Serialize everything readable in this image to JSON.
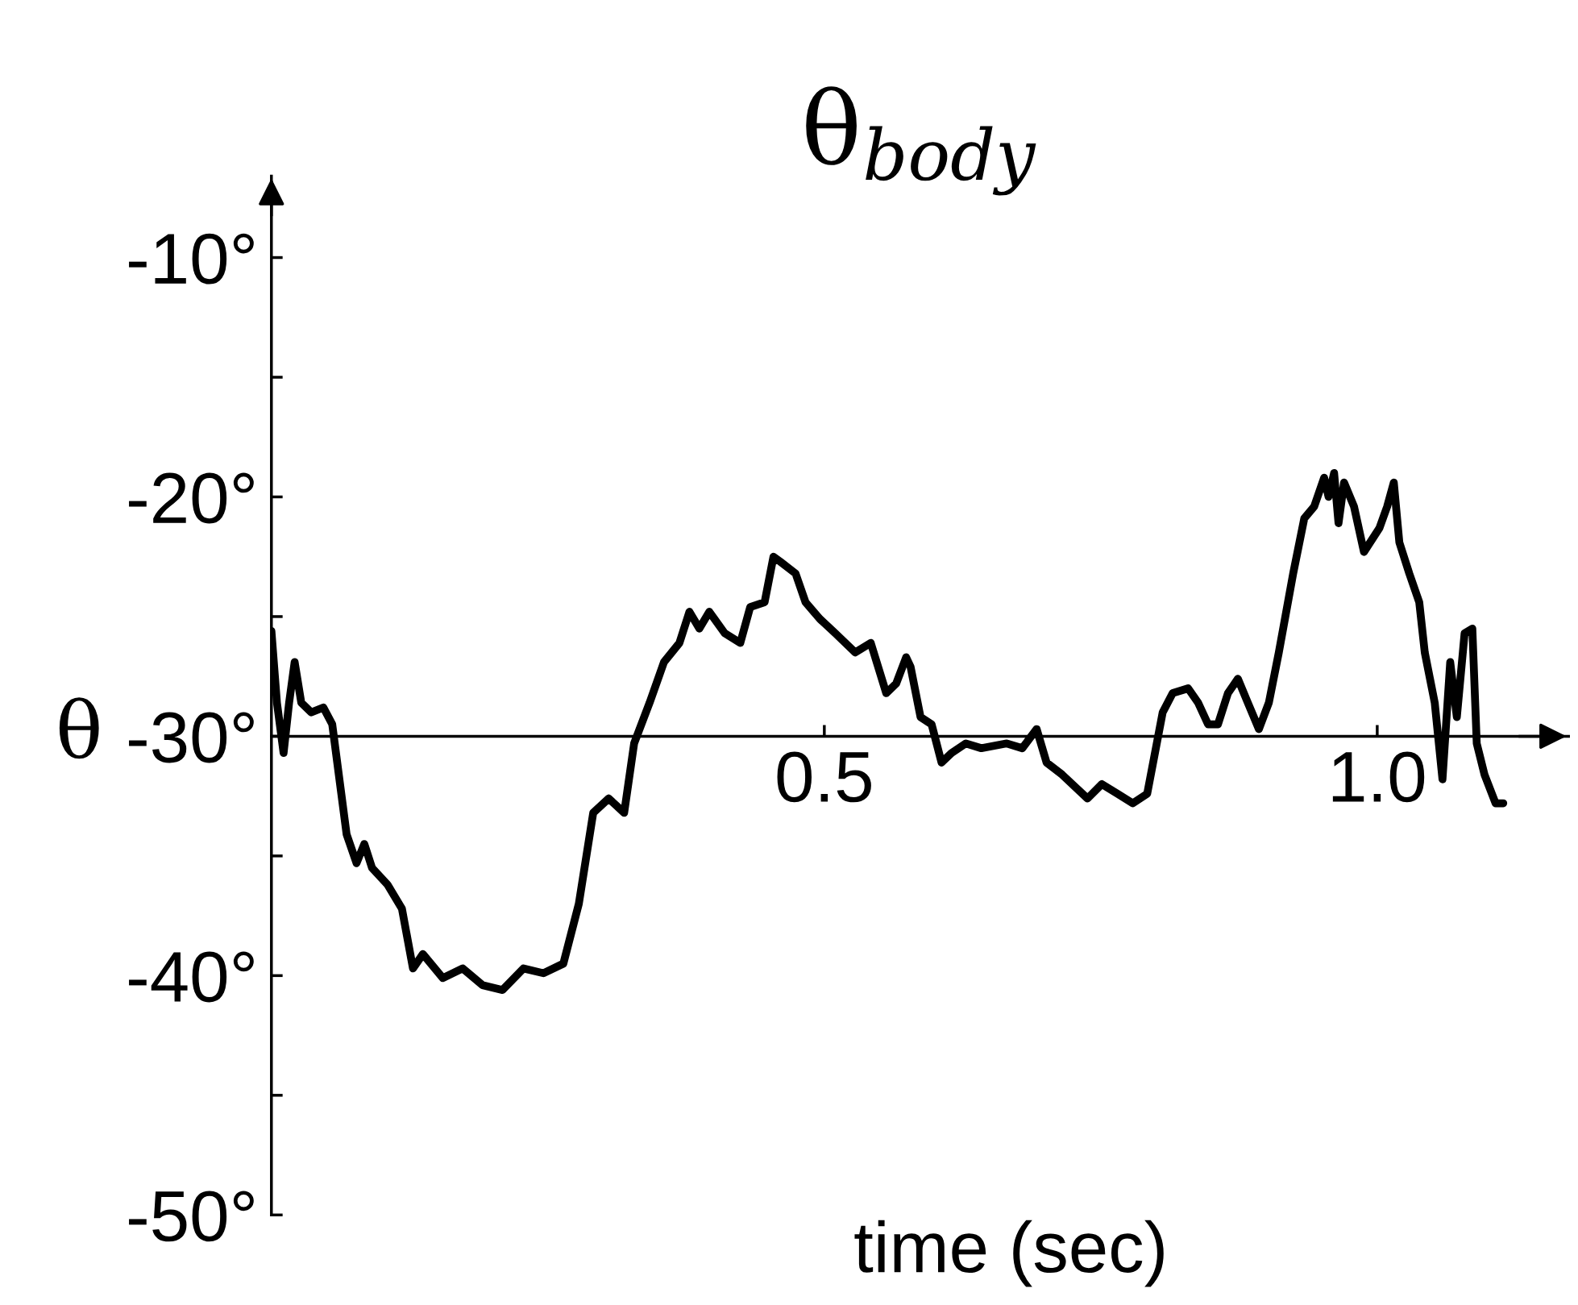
{
  "chart_data": {
    "type": "line",
    "title": "θ$_{body}$",
    "xlabel": "time (sec)",
    "ylabel": "θ",
    "xlim": [
      0,
      1.173
    ],
    "ylim": [
      -50,
      -6.6
    ],
    "xticks": [
      0.5,
      {
        "value": 1.0,
        "label": "1.0"
      }
    ],
    "yticks": [
      {
        "value": -50,
        "label": "-50°"
      },
      {
        "value": -45,
        "label": null
      },
      {
        "value": -40,
        "label": "-40°"
      },
      {
        "value": -35,
        "label": null
      },
      {
        "value": -30,
        "label": "-30°"
      },
      {
        "value": -25,
        "label": null
      },
      {
        "value": -20,
        "label": "-20°"
      },
      {
        "value": -15,
        "label": null
      },
      {
        "value": -10,
        "label": "-10°"
      }
    ],
    "grid": false,
    "legend": false,
    "x": [
      0.0,
      0.005,
      0.011,
      0.016,
      0.021,
      0.027,
      0.036,
      0.047,
      0.055,
      0.068,
      0.077,
      0.084,
      0.091,
      0.105,
      0.118,
      0.128,
      0.137,
      0.155,
      0.173,
      0.191,
      0.209,
      0.228,
      0.246,
      0.264,
      0.278,
      0.291,
      0.305,
      0.319,
      0.328,
      0.342,
      0.355,
      0.369,
      0.378,
      0.387,
      0.396,
      0.41,
      0.424,
      0.433,
      0.446,
      0.454,
      0.46,
      0.474,
      0.483,
      0.496,
      0.51,
      0.528,
      0.542,
      0.556,
      0.565,
      0.574,
      0.578,
      0.587,
      0.597,
      0.606,
      0.615,
      0.628,
      0.642,
      0.665,
      0.679,
      0.692,
      0.701,
      0.715,
      0.738,
      0.751,
      0.765,
      0.779,
      0.792,
      0.806,
      0.815,
      0.829,
      0.838,
      0.847,
      0.856,
      0.865,
      0.874,
      0.883,
      0.893,
      0.902,
      0.911,
      0.924,
      0.934,
      0.943,
      0.952,
      0.956,
      0.961,
      0.965,
      0.97,
      0.979,
      0.988,
      1.002,
      1.009,
      1.015,
      1.02,
      1.029,
      1.038,
      1.043,
      1.052,
      1.059,
      1.066,
      1.072,
      1.079,
      1.086,
      1.09,
      1.097,
      1.107,
      1.114
    ],
    "series": [
      {
        "color": "#000000",
        "values": [
          -25.6,
          -28.6,
          -30.7,
          -28.6,
          -26.9,
          -28.6,
          -29.0,
          -28.8,
          -29.5,
          -34.1,
          -35.3,
          -34.5,
          -35.5,
          -36.2,
          -37.2,
          -39.7,
          -39.1,
          -40.1,
          -39.7,
          -40.4,
          -40.6,
          -39.7,
          -39.9,
          -39.5,
          -37.0,
          -33.2,
          -32.6,
          -33.2,
          -30.3,
          -28.6,
          -26.9,
          -26.1,
          -24.8,
          -25.5,
          -24.8,
          -25.7,
          -26.1,
          -24.6,
          -24.4,
          -22.5,
          -22.7,
          -23.2,
          -24.4,
          -25.1,
          -25.7,
          -26.5,
          -26.1,
          -28.2,
          -27.8,
          -26.7,
          -27.1,
          -29.2,
          -29.5,
          -31.1,
          -30.7,
          -30.3,
          -30.5,
          -30.3,
          -30.5,
          -29.7,
          -31.1,
          -31.6,
          -32.6,
          -32.0,
          -32.4,
          -32.8,
          -32.4,
          -29.0,
          -28.2,
          -28.0,
          -28.6,
          -29.5,
          -29.5,
          -28.2,
          -27.6,
          -28.6,
          -29.7,
          -28.6,
          -26.5,
          -23.2,
          -20.9,
          -20.4,
          -19.2,
          -20.0,
          -19.0,
          -21.1,
          -19.4,
          -20.4,
          -22.3,
          -21.3,
          -20.4,
          -19.4,
          -21.9,
          -23.2,
          -24.4,
          -26.5,
          -28.6,
          -31.8,
          -26.9,
          -29.2,
          -25.7,
          -25.5,
          -30.3,
          -31.6,
          -32.8,
          -32.8
        ]
      }
    ]
  }
}
